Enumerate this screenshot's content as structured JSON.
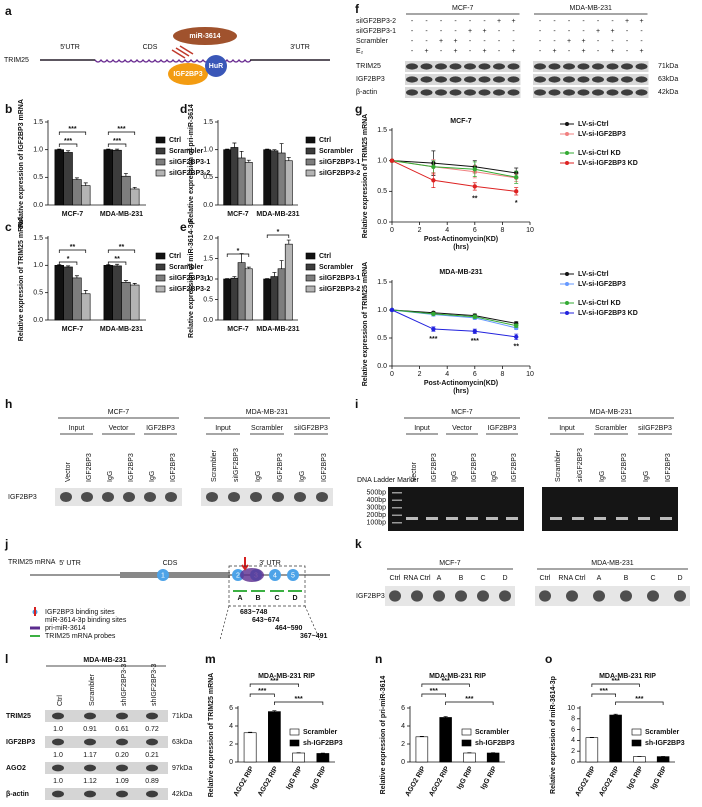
{
  "chart_data": [
    {
      "type": "bar",
      "panel": "b",
      "ylabel": "Relative expression of IGF2BP3 mRNA",
      "categories": [
        "MCF-7",
        "MDA-MB-231"
      ],
      "ylim": [
        0,
        1.5
      ],
      "yticks": [
        {
          "value": 0,
          "label": "0.0"
        },
        {
          "value": 0.5,
          "label": "0.5"
        },
        {
          "value": 1,
          "label": "1.0"
        },
        {
          "value": 1.5,
          "label": "1.5"
        }
      ],
      "series": [
        {
          "name": "Ctrl",
          "color": "#111111",
          "values": [
            1.0,
            1.0
          ],
          "errors": [
            0.01,
            0.01
          ]
        },
        {
          "name": "Scrambler",
          "color": "#3c3c3c",
          "values": [
            0.95,
            0.99
          ],
          "errors": [
            0.03,
            0.02
          ]
        },
        {
          "name": "siIGF2BP3-1",
          "color": "#7d7d7d",
          "values": [
            0.46,
            0.52
          ],
          "errors": [
            0.03,
            0.05
          ]
        },
        {
          "name": "siIGF2BP3-2",
          "color": "#b4b4b4",
          "values": [
            0.35,
            0.29
          ],
          "errors": [
            0.05,
            0.03
          ]
        }
      ],
      "annotations": [
        "***",
        "***",
        "***",
        "***"
      ]
    },
    {
      "type": "bar",
      "panel": "c",
      "ylabel": "Relative expression of TRIM25 mRNA",
      "categories": [
        "MCF-7",
        "MDA-MB-231"
      ],
      "ylim": [
        0,
        1.5
      ],
      "yticks": [
        {
          "value": 0,
          "label": "0.0"
        },
        {
          "value": 0.5,
          "label": "0.5"
        },
        {
          "value": 1,
          "label": "1.0"
        },
        {
          "value": 1.5,
          "label": "1.5"
        }
      ],
      "series": [
        {
          "name": "Ctrl",
          "color": "#111111",
          "values": [
            1.0,
            1.0
          ],
          "errors": [
            0.01,
            0.01
          ]
        },
        {
          "name": "Scrambler",
          "color": "#3c3c3c",
          "values": [
            0.97,
            0.99
          ],
          "errors": [
            0.02,
            0.03
          ]
        },
        {
          "name": "siIGF2BP3-1",
          "color": "#7d7d7d",
          "values": [
            0.77,
            0.69
          ],
          "errors": [
            0.04,
            0.03
          ]
        },
        {
          "name": "siIGF2BP3-2",
          "color": "#b4b4b4",
          "values": [
            0.48,
            0.64
          ],
          "errors": [
            0.06,
            0.03
          ]
        }
      ],
      "annotations": [
        "**",
        "*",
        "**",
        "**"
      ]
    },
    {
      "type": "bar",
      "panel": "d",
      "ylabel": "Relative expression of pri-miR-3614",
      "categories": [
        "MCF-7",
        "MDA-MB-231"
      ],
      "ylim": [
        0,
        1.5
      ],
      "yticks": [
        {
          "value": 0,
          "label": "0.0"
        },
        {
          "value": 0.5,
          "label": "0.5"
        },
        {
          "value": 1,
          "label": "1.0"
        },
        {
          "value": 1.5,
          "label": "1.5"
        }
      ],
      "series": [
        {
          "name": "Ctrl",
          "color": "#111111",
          "values": [
            1.0,
            1.0
          ],
          "errors": [
            0.01,
            0.01
          ]
        },
        {
          "name": "Scrambler",
          "color": "#3c3c3c",
          "values": [
            1.04,
            0.98
          ],
          "errors": [
            0.08,
            0.02
          ]
        },
        {
          "name": "siIGF2BP3-1",
          "color": "#7d7d7d",
          "values": [
            0.85,
            0.94
          ],
          "errors": [
            0.12,
            0.17
          ]
        },
        {
          "name": "siIGF2BP3-2",
          "color": "#b4b4b4",
          "values": [
            0.77,
            0.8
          ],
          "errors": [
            0.04,
            0.06
          ]
        }
      ]
    },
    {
      "type": "bar",
      "panel": "e",
      "ylabel": "Relative expression of miR-3614-3p",
      "categories": [
        "MCF-7",
        "MDA-MB-231"
      ],
      "ylim": [
        0,
        2
      ],
      "yticks": [
        {
          "value": 0,
          "label": "0.0"
        },
        {
          "value": 0.5,
          "label": "0.5"
        },
        {
          "value": 1,
          "label": "1.0"
        },
        {
          "value": 1.5,
          "label": "1.5"
        },
        {
          "value": 2,
          "label": "2.0"
        }
      ],
      "series": [
        {
          "name": "Ctrl",
          "color": "#111111",
          "values": [
            1.0,
            1.0
          ],
          "errors": [
            0.01,
            0.01
          ]
        },
        {
          "name": "Scrambler",
          "color": "#3c3c3c",
          "values": [
            1.02,
            1.06
          ],
          "errors": [
            0.04,
            0.1
          ]
        },
        {
          "name": "siIGF2BP3-1",
          "color": "#7d7d7d",
          "values": [
            1.4,
            1.25
          ],
          "errors": [
            0.22,
            0.2
          ]
        },
        {
          "name": "siIGF2BP3-2",
          "color": "#b4b4b4",
          "values": [
            1.25,
            1.85
          ],
          "errors": [
            0.04,
            0.1
          ]
        }
      ],
      "annotations": [
        "*",
        "*"
      ]
    },
    {
      "type": "line",
      "panel": "g",
      "title": "MCF-7",
      "ylabel": "Relative expression of TRIM25 mRNA",
      "xlabel": [
        "Post-Actinomycin(KD)",
        "(hrs)"
      ],
      "x": [
        0,
        3,
        6,
        9
      ],
      "xlim": [
        0,
        10
      ],
      "xticks": [
        0,
        2,
        4,
        6,
        8,
        10
      ],
      "ylim": [
        0,
        1.5
      ],
      "yticks": [
        {
          "value": 0,
          "label": "0.0"
        },
        {
          "value": 0.5,
          "label": "0.5"
        },
        {
          "value": 1,
          "label": "1.0"
        },
        {
          "value": 1.5,
          "label": "1.5"
        }
      ],
      "series": [
        {
          "name": "LV-si-Ctrl",
          "color": "#111111",
          "values": [
            1.0,
            0.96,
            0.9,
            0.8
          ],
          "errors": [
            0.02,
            0.2,
            0.1,
            0.08
          ]
        },
        {
          "name": "LV-si-IGF2BP3",
          "color": "#f08080",
          "values": [
            1.0,
            0.9,
            0.82,
            0.72
          ],
          "errors": [
            0.02,
            0.12,
            0.1,
            0.06
          ]
        },
        {
          "name": "LV-si-Ctrl KD",
          "color": "#33aa33",
          "values": [
            1.0,
            0.9,
            0.86,
            0.73
          ],
          "errors": [
            0.02,
            0.1,
            0.12,
            0.1
          ]
        },
        {
          "name": "LV-si-IGF2BP3 KD",
          "color": "#dd2222",
          "values": [
            1.0,
            0.68,
            0.58,
            0.5
          ],
          "errors": [
            0.02,
            0.12,
            0.06,
            0.06
          ]
        }
      ],
      "annotations": [
        "**",
        "*"
      ]
    },
    {
      "type": "line",
      "title": "MDA-MB-231",
      "ylabel": "Relative expression of TRIM25 mRNA",
      "xlabel": [
        "Post-Actinomycin(KD)",
        "(hrs)"
      ],
      "x": [
        0,
        3,
        6,
        9
      ],
      "xlim": [
        0,
        10
      ],
      "xticks": [
        0,
        2,
        4,
        6,
        8,
        10
      ],
      "ylim": [
        0,
        1.5
      ],
      "yticks": [
        {
          "value": 0,
          "label": "0.0"
        },
        {
          "value": 0.5,
          "label": "0.5"
        },
        {
          "value": 1,
          "label": "1.0"
        },
        {
          "value": 1.5,
          "label": "1.5"
        }
      ],
      "series": [
        {
          "name": "LV-si-Ctrl",
          "color": "#111111",
          "values": [
            1.0,
            0.95,
            0.9,
            0.76
          ],
          "errors": [
            0.02,
            0.02,
            0.03,
            0.03
          ]
        },
        {
          "name": "LV-si-IGF2BP3",
          "color": "#6699ff",
          "values": [
            1.0,
            0.92,
            0.86,
            0.68
          ],
          "errors": [
            0.02,
            0.03,
            0.03,
            0.03
          ]
        },
        {
          "name": "LV-si-Ctrl KD",
          "color": "#33aa33",
          "values": [
            1.0,
            0.93,
            0.88,
            0.72
          ],
          "errors": [
            0.02,
            0.02,
            0.03,
            0.03
          ]
        },
        {
          "name": "LV-si-IGF2BP3 KD",
          "color": "#2222dd",
          "values": [
            1.0,
            0.66,
            0.62,
            0.52
          ],
          "errors": [
            0.02,
            0.04,
            0.04,
            0.05
          ]
        }
      ],
      "annotations": [
        "***",
        "***",
        "**"
      ]
    },
    {
      "type": "bar",
      "panel": "m",
      "title": "MDA-MB-231  RIP",
      "ylabel": "Relative expression of TRIM25 mRNA",
      "categories": [
        "AGO2 RIP",
        "AGO2 RIP",
        "IgG RIP",
        "IgG RIP"
      ],
      "ylim": [
        0,
        6
      ],
      "yticks": [
        0,
        2,
        4,
        6
      ],
      "series": [
        {
          "name": "Scrambler",
          "color": "#ffffff",
          "values": [
            3.25,
            null,
            1.0,
            null
          ],
          "errors": [
            0.06,
            null,
            0.03,
            null
          ]
        },
        {
          "name": "sh-IGF2BP3",
          "color": "#000000",
          "values": [
            null,
            5.6,
            null,
            0.95
          ],
          "errors": [
            null,
            0.1,
            null,
            0.04
          ]
        }
      ],
      "annotations": [
        "***",
        "***",
        "***"
      ]
    },
    {
      "type": "bar",
      "panel": "n",
      "title": "MDA-MB-231  RIP",
      "ylabel": "Relative expression of pri-miR-3614",
      "categories": [
        "AGO2 RIP",
        "AGO2 RIP",
        "IgG RIP",
        "IgG RIP"
      ],
      "ylim": [
        0,
        6
      ],
      "yticks": [
        0,
        2,
        4,
        6
      ],
      "series": [
        {
          "name": "Scrambler",
          "color": "#ffffff",
          "values": [
            2.8,
            null,
            1.0,
            null
          ],
          "errors": [
            0.05,
            null,
            0.03,
            null
          ]
        },
        {
          "name": "sh-IGF2BP3",
          "color": "#000000",
          "values": [
            null,
            4.95,
            null,
            1.0
          ],
          "errors": [
            null,
            0.1,
            null,
            0.03
          ]
        }
      ],
      "annotations": [
        "***",
        "***",
        "***"
      ]
    },
    {
      "type": "bar",
      "panel": "o",
      "title": "MDA-MB-231  RIP",
      "ylabel": "Relative expression of miR-3614-3p",
      "categories": [
        "AGO2 RIP",
        "AGO2 RIP",
        "IgG RIP",
        "IgG RIP"
      ],
      "ylim": [
        0,
        10
      ],
      "yticks": [
        0,
        2,
        4,
        6,
        8,
        10
      ],
      "series": [
        {
          "name": "Scrambler",
          "color": "#ffffff",
          "values": [
            4.5,
            null,
            1.0,
            null
          ],
          "errors": [
            0.06,
            null,
            0.03,
            null
          ]
        },
        {
          "name": "sh-IGF2BP3",
          "color": "#000000",
          "values": [
            null,
            8.7,
            null,
            1.0
          ],
          "errors": [
            null,
            0.15,
            null,
            0.03
          ]
        }
      ],
      "annotations": [
        "***",
        "***",
        "***"
      ]
    }
  ],
  "figure": {
    "a": {
      "panel": "a",
      "gene": "TRIM25",
      "regions": [
        "5'UTR",
        "CDS",
        "3'UTR"
      ],
      "mirna": "miR-3614",
      "proteins": [
        "IGF2BP3",
        "HuR"
      ]
    },
    "f": {
      "panel": "f",
      "cell_lines": [
        "MCF-7",
        "MDA-MB-231"
      ],
      "conditions": [
        {
          "name": "siIGF2BP3-2",
          "signs": [
            [
              "-",
              "-",
              "-",
              "-",
              "-",
              "-",
              "+",
              "+"
            ],
            [
              "-",
              "-",
              "-",
              "-",
              "-",
              "-",
              "+",
              "+"
            ]
          ]
        },
        {
          "name": "siIGF2BP3-1",
          "signs": [
            [
              "-",
              "-",
              "-",
              "-",
              "+",
              "+",
              "-",
              "-"
            ],
            [
              "-",
              "-",
              "-",
              "-",
              "+",
              "+",
              "-",
              "-"
            ]
          ]
        },
        {
          "name": "Scrambler",
          "signs": [
            [
              "-",
              "-",
              "+",
              "+",
              "-",
              "-",
              "-",
              "-"
            ],
            [
              "-",
              "-",
              "+",
              "+",
              "-",
              "-",
              "-",
              "-"
            ]
          ]
        },
        {
          "name": "E₂",
          "signs": [
            [
              "-",
              "+",
              "-",
              "+",
              "-",
              "+",
              "-",
              "+"
            ],
            [
              "-",
              "+",
              "-",
              "+",
              "-",
              "+",
              "-",
              "+"
            ]
          ]
        }
      ],
      "rows": [
        {
          "name": "TRIM25",
          "size": "71kDa"
        },
        {
          "name": "IGF2BP3",
          "size": "63kDa"
        },
        {
          "name": "β-actin",
          "size": "42kDa"
        }
      ]
    },
    "h": {
      "panel": "h",
      "cell_lines": [
        "MCF-7",
        "MDA-MB-231"
      ],
      "groups": [
        [
          "Input",
          "Vector",
          "IGF2BP3"
        ],
        [
          "Input",
          "Scrambler",
          "siIGF2BP3"
        ]
      ],
      "lanes": [
        [
          "Vector",
          "IGF2BP3",
          "IgG",
          "IGF2BP3",
          "IgG",
          "IGF2BP3"
        ],
        [
          "Scrambler",
          "siIGF2BP3",
          "IgG",
          "IGF2BP3",
          "IgG",
          "IGF2BP3"
        ]
      ],
      "row": "IGF2BP3"
    },
    "i": {
      "panel": "i",
      "cell_lines": [
        "MCF-7",
        "MDA-MB-231"
      ],
      "groups": [
        [
          "Input",
          "Vector",
          "IGF2BP3"
        ],
        [
          "Input",
          "Scrambler",
          "siIGF2BP3"
        ]
      ],
      "lanes": [
        [
          "Vector",
          "IGF2BP3",
          "IgG",
          "IGF2BP3",
          "IgG",
          "IGF2BP3"
        ],
        [
          "Scrambler",
          "siIGF2BP3",
          "IgG",
          "IGF2BP3",
          "IgG",
          "IGF2BP3"
        ]
      ],
      "ladder_title": "DNA Ladder Marker",
      "ladder": [
        "500bp",
        "400bp",
        "300bp",
        "200bp",
        "100bp"
      ]
    },
    "j": {
      "panel": "j",
      "mrna": "TRIM25 mRNA",
      "regions": [
        "5' UTR",
        "CDS",
        "3' UTR"
      ],
      "sites": [
        "1",
        "2",
        "3",
        "4",
        "5"
      ],
      "probes": [
        "A",
        "B",
        "C",
        "D"
      ],
      "legend": [
        "IGF2BP3 binding sites",
        "miR-3614-3p binding sites",
        "pri-miR-3614",
        "TRIM25 mRNA probes"
      ],
      "ranges": [
        "683~748",
        "643~674",
        "464~590",
        "367~491"
      ]
    },
    "k": {
      "panel": "k",
      "cell_lines": [
        "MCF-7",
        "MDA-MB-231"
      ],
      "lanes": [
        [
          "Ctrl",
          "RNA Ctrl",
          "A",
          "B",
          "C",
          "D"
        ],
        [
          "Ctrl",
          "RNA Ctrl",
          "A",
          "B",
          "C",
          "D"
        ]
      ],
      "row": "IGF2BP3"
    },
    "l": {
      "panel": "l",
      "cell_line": "MDA-MB-231",
      "lanes": [
        "Ctrl",
        "Scrambler",
        "shIGF2BP3-3",
        "shIGF2BP3-3"
      ],
      "rows": [
        {
          "name": "TRIM25",
          "size": "71kDa",
          "quant": [
            "1.0",
            "0.91",
            "0.61",
            "0.72"
          ]
        },
        {
          "name": "IGF2BP3",
          "size": "63kDa",
          "quant": [
            "1.0",
            "1.17",
            "0.20",
            "0.21"
          ]
        },
        {
          "name": "AGO2",
          "size": "97kDa",
          "quant": [
            "1.0",
            "1.12",
            "1.09",
            "0.89"
          ]
        },
        {
          "name": "β-actin",
          "size": "42kDa"
        }
      ]
    }
  }
}
